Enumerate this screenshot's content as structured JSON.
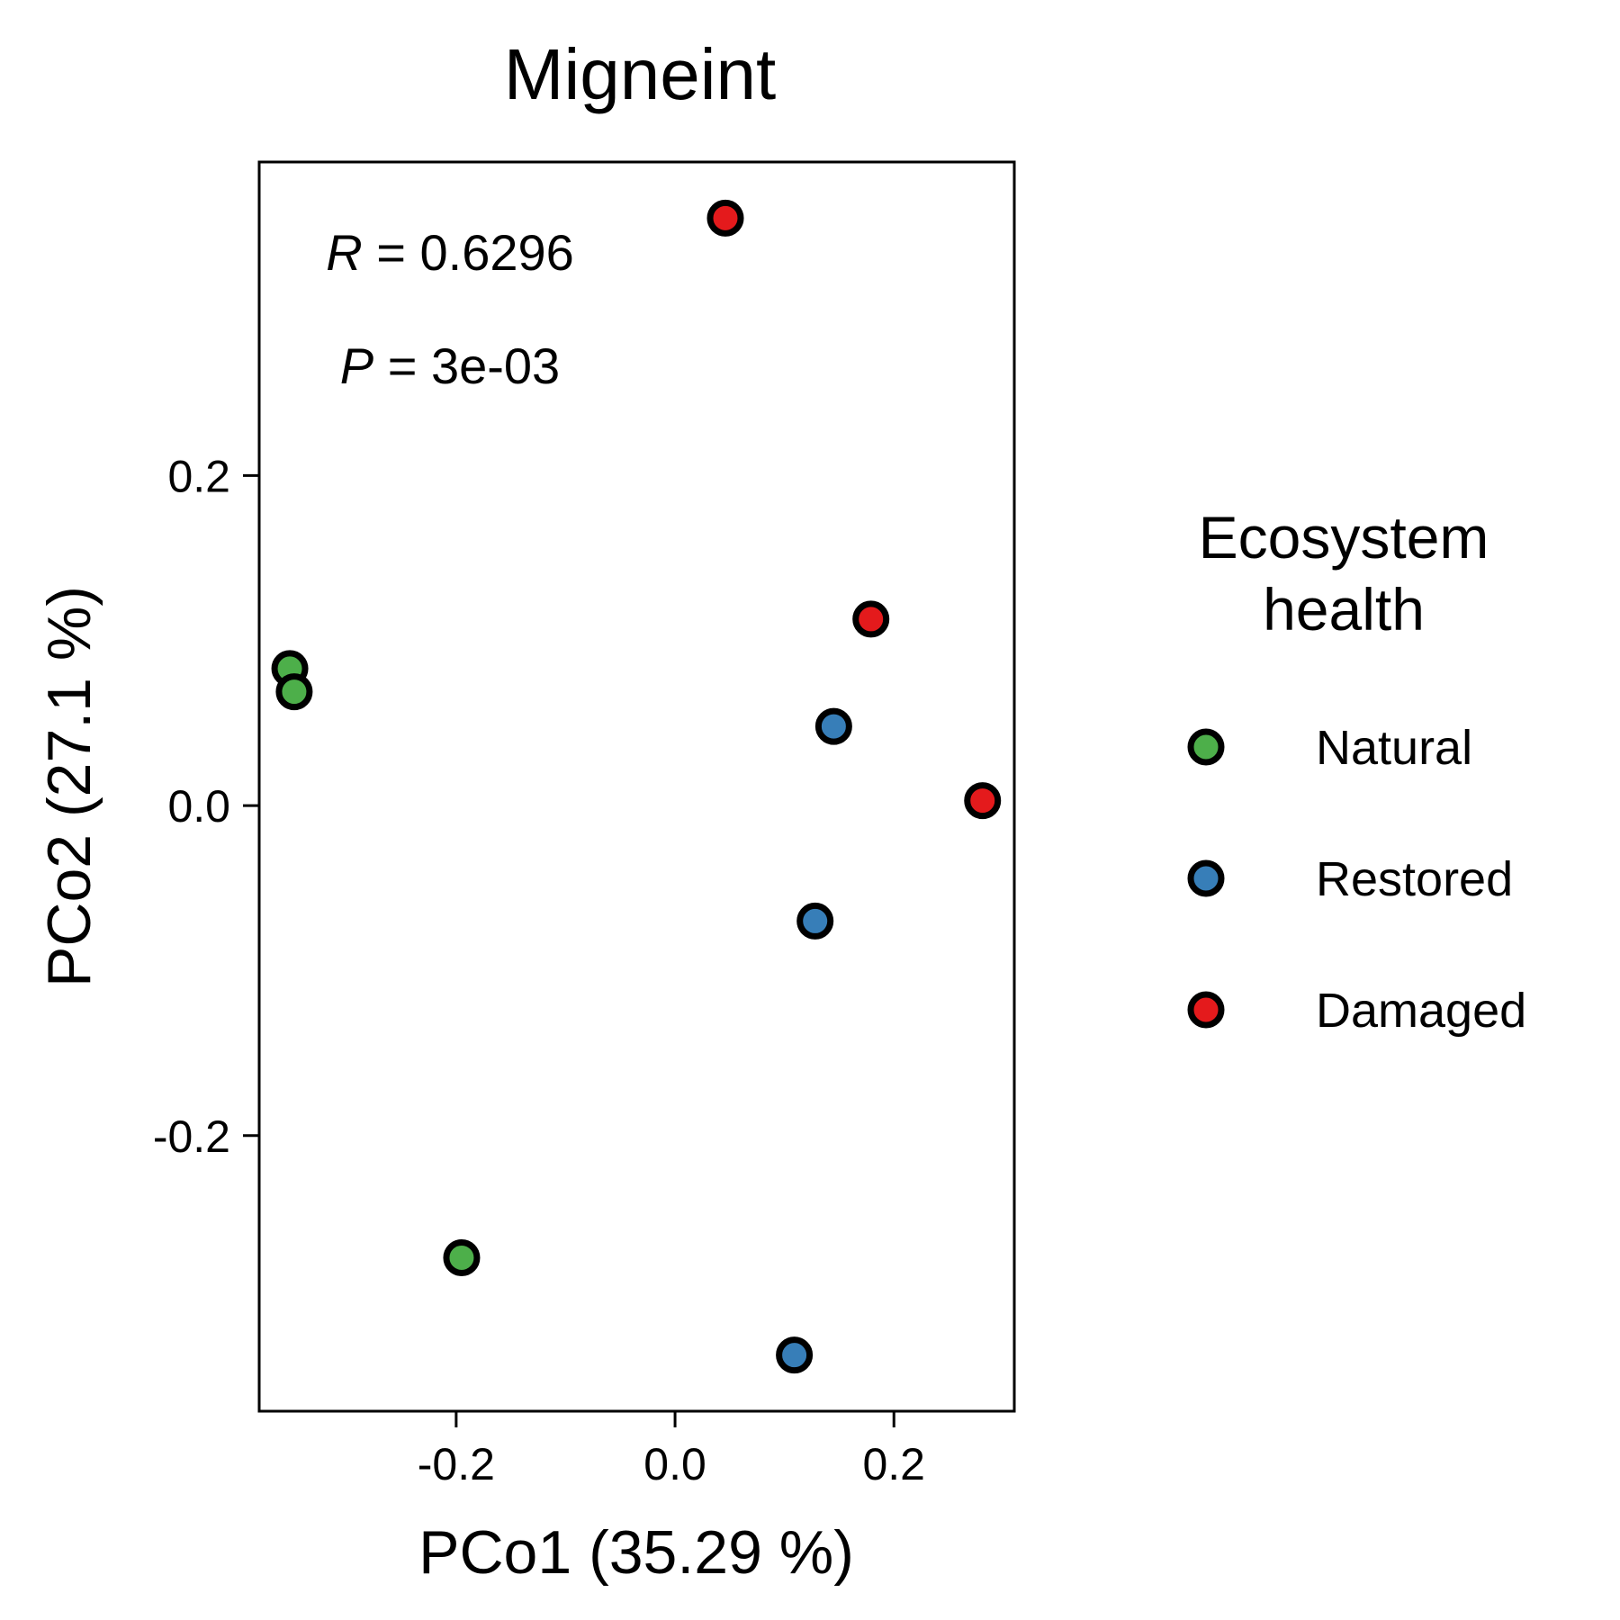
{
  "chart_data": {
    "type": "scatter",
    "title": "Migneint",
    "xlabel": "PCo1 (35.29 %)",
    "ylabel": "PCo2 (27.1 %)",
    "xlim": [
      -0.38,
      0.31
    ],
    "ylim": [
      -0.367,
      0.39
    ],
    "x_ticks": [
      -0.2,
      0.0,
      0.2
    ],
    "x_tick_labels": [
      "-0.2",
      "0.0",
      "0.2"
    ],
    "y_ticks": [
      -0.2,
      0.0,
      0.2
    ],
    "y_tick_labels": [
      "-0.2",
      "0.0",
      "0.2"
    ],
    "grid": false,
    "annotations": {
      "r": {
        "var": "R",
        "eq": " = ",
        "value": "0.6296"
      },
      "p": {
        "var": "P",
        "eq": " = ",
        "value": "3e-03"
      }
    },
    "legend": {
      "title_lines": [
        "Ecosystem",
        "health"
      ],
      "placement": "right"
    },
    "series": [
      {
        "name": "Natural",
        "color": "#4daf4a",
        "points": [
          {
            "x": -0.352,
            "y": 0.083
          },
          {
            "x": -0.348,
            "y": 0.069
          },
          {
            "x": -0.195,
            "y": -0.274
          }
        ]
      },
      {
        "name": "Restored",
        "color": "#377eb8",
        "points": [
          {
            "x": 0.145,
            "y": 0.048
          },
          {
            "x": 0.128,
            "y": -0.07
          },
          {
            "x": 0.109,
            "y": -0.333
          }
        ]
      },
      {
        "name": "Damaged",
        "color": "#e41a1c",
        "points": [
          {
            "x": 0.046,
            "y": 0.356
          },
          {
            "x": 0.179,
            "y": 0.113
          },
          {
            "x": 0.281,
            "y": 0.003
          }
        ]
      }
    ]
  }
}
